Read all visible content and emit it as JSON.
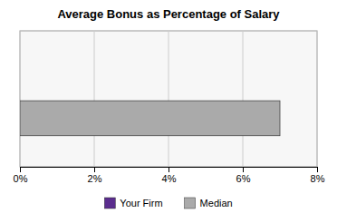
{
  "chart_data": {
    "type": "bar",
    "title": "Average Bonus as Percentage of Salary",
    "orientation": "horizontal",
    "categories": [
      null
    ],
    "series": [
      {
        "name": "Your Firm",
        "color": "#5b2d8e",
        "values": [
          0
        ]
      },
      {
        "name": "Median",
        "color": "#aaaaaa",
        "values": [
          7.0
        ]
      }
    ],
    "xlim": [
      0,
      8
    ],
    "xticks": [
      {
        "value": 0,
        "label": "0%"
      },
      {
        "value": 2,
        "label": "2%"
      },
      {
        "value": 4,
        "label": "4%"
      },
      {
        "value": 6,
        "label": "6%"
      },
      {
        "value": 8,
        "label": "8%"
      }
    ],
    "grid": true,
    "legend": "bottom",
    "tick_labels": "x"
  }
}
